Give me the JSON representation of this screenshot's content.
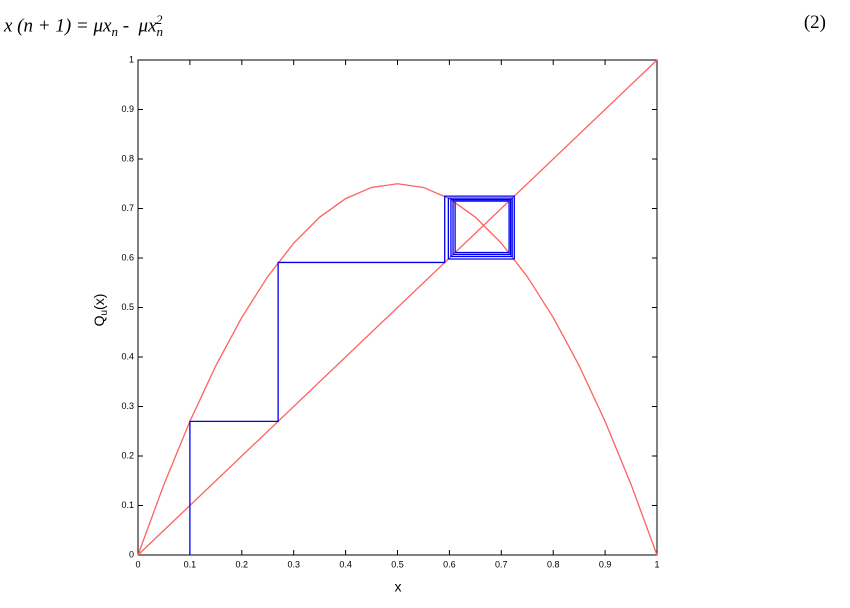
{
  "equation": {
    "lhs": "x (n + 1) = μx",
    "sub1": "n",
    "mid": " -  μx",
    "sub2": "n",
    "sup": "2",
    "number": "(2)"
  },
  "chart_data": {
    "type": "line",
    "xlabel": "x",
    "ylabel": {
      "base": "Q",
      "sub": "u",
      "rest": "(x)"
    },
    "xlim": [
      0,
      1
    ],
    "ylim": [
      0,
      1
    ],
    "xticks": [
      0,
      0.1,
      0.2,
      0.3,
      0.4,
      0.5,
      0.6,
      0.7,
      0.8,
      0.9,
      1
    ],
    "yticks": [
      0,
      0.1,
      0.2,
      0.3,
      0.4,
      0.5,
      0.6,
      0.7,
      0.8,
      0.9,
      1
    ],
    "grid": false,
    "series": [
      {
        "color": "#ff6060",
        "x": [
          0,
          0.05,
          0.1,
          0.15,
          0.2,
          0.25,
          0.3,
          0.35,
          0.4,
          0.45,
          0.5,
          0.55,
          0.6,
          0.65,
          0.7,
          0.75,
          0.8,
          0.85,
          0.9,
          0.95,
          1
        ],
        "values": [
          0,
          0.1425,
          0.27,
          0.3825,
          0.48,
          0.5625,
          0.63,
          0.6825,
          0.72,
          0.7425,
          0.75,
          0.7425,
          0.72,
          0.6825,
          0.63,
          0.5625,
          0.48,
          0.3825,
          0.27,
          0.1425,
          0
        ]
      },
      {
        "color": "#ff6060",
        "x": [
          0,
          1
        ],
        "values": [
          0,
          1
        ]
      },
      {
        "color": "#0000ee",
        "x": [
          0.1,
          0.1,
          0.27,
          0.27,
          0.591,
          0.591,
          0.725,
          0.725,
          0.598,
          0.598,
          0.721,
          0.721,
          0.603,
          0.603,
          0.718,
          0.718,
          0.607,
          0.607,
          0.715,
          0.715,
          0.611,
          0.611
        ],
        "values": [
          0,
          0.27,
          0.27,
          0.591,
          0.591,
          0.725,
          0.725,
          0.598,
          0.598,
          0.721,
          0.721,
          0.603,
          0.603,
          0.718,
          0.718,
          0.607,
          0.607,
          0.715,
          0.715,
          0.611,
          0.611,
          0.713
        ]
      }
    ]
  }
}
